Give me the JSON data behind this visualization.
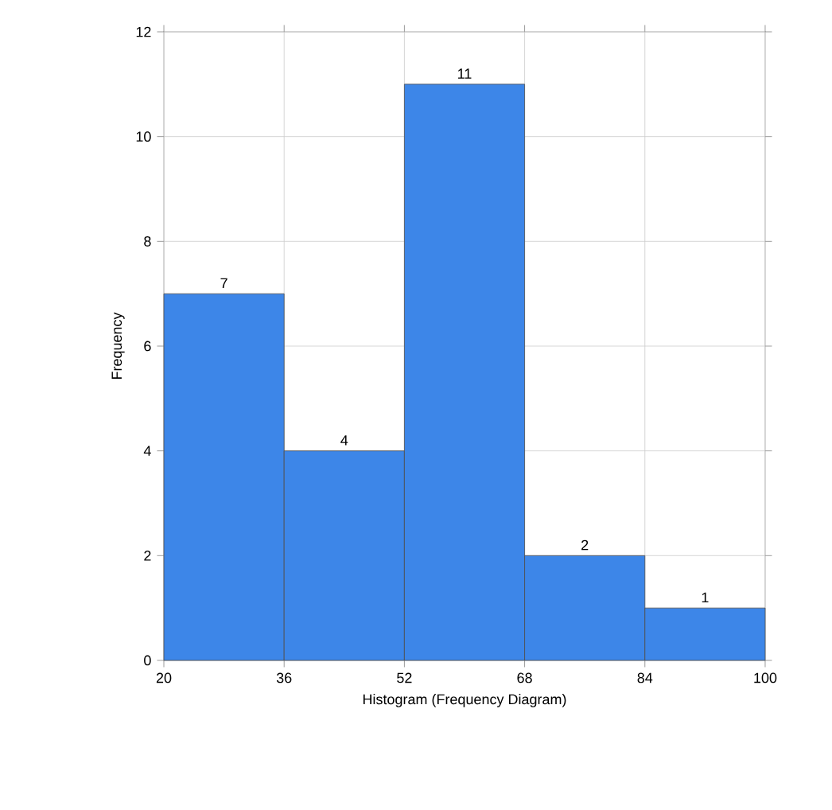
{
  "chart_data": {
    "type": "histogram",
    "xlabel": "Histogram (Frequency Diagram)",
    "ylabel": "Frequency",
    "bins": [
      20,
      36,
      52,
      68,
      84,
      100
    ],
    "values": [
      7,
      4,
      11,
      2,
      1
    ],
    "color": "#3d86e8",
    "xlim": [
      20,
      100
    ],
    "xticks": [
      20,
      36,
      52,
      68,
      84,
      100
    ],
    "ylim": [
      0,
      12
    ],
    "yticks": [
      0,
      2,
      4,
      6,
      8,
      10,
      12
    ],
    "grid": true,
    "data_labels": true
  }
}
